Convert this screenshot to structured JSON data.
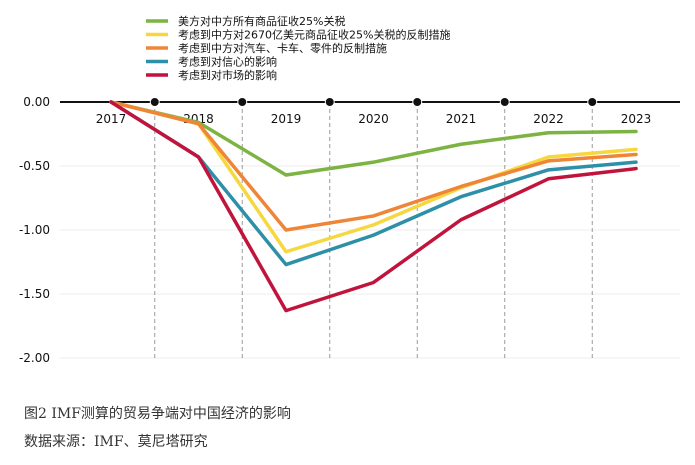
{
  "chart_data": {
    "type": "line",
    "x": [
      "2017",
      "2018",
      "2019",
      "2020",
      "2021",
      "2022",
      "2023"
    ],
    "ylim": [
      -2.0,
      0.0
    ],
    "yticks": [
      "0.00",
      "-0.50",
      "-1.00",
      "-1.50",
      "-2.00"
    ],
    "ytick_values": [
      0,
      -0.5,
      -1.0,
      -1.5,
      -2.0
    ],
    "legend_position": "top-left",
    "series": [
      {
        "name": "美方对中方所有商品征收25%关税",
        "color": "#7cb342",
        "values": [
          0,
          -0.16,
          -0.57,
          -0.47,
          -0.33,
          -0.24,
          -0.23
        ]
      },
      {
        "name": "考虑到中方对2670亿美元商品征收25%关税的反制措施",
        "color": "#f7d740",
        "values": [
          0,
          -0.17,
          -1.17,
          -0.96,
          -0.67,
          -0.43,
          -0.37
        ]
      },
      {
        "name": "考虑到中方对汽车、卡车、零件的反制措施",
        "color": "#ef8536",
        "values": [
          0,
          -0.17,
          -1.0,
          -0.89,
          -0.66,
          -0.46,
          -0.41
        ]
      },
      {
        "name": "考虑到对信心的影响",
        "color": "#2e8fa8",
        "values": [
          0,
          -0.43,
          -1.27,
          -1.04,
          -0.74,
          -0.53,
          -0.47
        ]
      },
      {
        "name": "考虑到对市场的影响",
        "color": "#c0143c",
        "values": [
          0,
          -0.43,
          -1.63,
          -1.41,
          -0.92,
          -0.6,
          -0.52
        ]
      }
    ]
  },
  "caption": {
    "title": "图2  IMF测算的贸易争端对中国经济的影响",
    "source": "数据来源：IMF、莫尼塔研究"
  }
}
